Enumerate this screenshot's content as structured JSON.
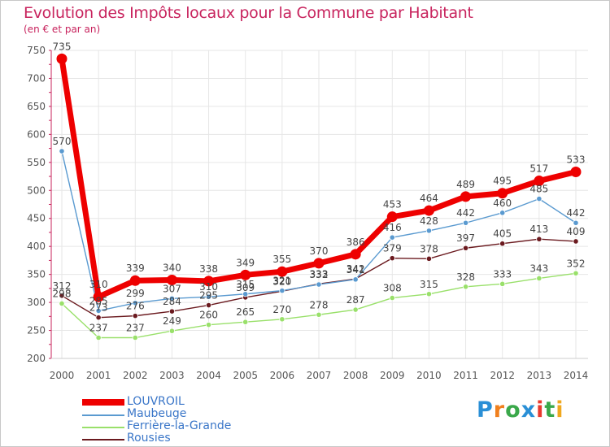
{
  "chart_data": {
    "type": "line",
    "title": "Evolution des Impôts locaux pour la Commune par Habitant",
    "subtitle": "(en € et par an)",
    "x": [
      "2000",
      "2001",
      "2002",
      "2003",
      "2004",
      "2005",
      "2006",
      "2007",
      "2008",
      "2009",
      "2010",
      "2011",
      "2012",
      "2013",
      "2014"
    ],
    "y_ticks": [
      200,
      250,
      300,
      350,
      400,
      450,
      500,
      550,
      600,
      650,
      700,
      750
    ],
    "ylim": [
      200,
      750
    ],
    "grid": true,
    "legend_position": "bottom-left",
    "series": [
      {
        "name": "Rousies",
        "color": "#6b1a1f",
        "values": [
          312,
          273,
          276,
          284,
          295,
          309,
          320,
          333,
          342,
          379,
          378,
          397,
          405,
          413,
          409
        ]
      },
      {
        "name": "Ferrière-la-Grande",
        "color": "#99e06a",
        "values": [
          298,
          237,
          237,
          249,
          260,
          265,
          270,
          278,
          287,
          308,
          315,
          328,
          333,
          343,
          352
        ]
      },
      {
        "name": "Maubeuge",
        "color": "#5a9ad0",
        "values": [
          570,
          285,
          299,
          307,
          310,
          315,
          321,
          332,
          341,
          416,
          428,
          442,
          460,
          485,
          442
        ]
      },
      {
        "name": "LOUVROIL",
        "color": "#ee0000",
        "values": [
          735,
          310,
          339,
          340,
          338,
          349,
          355,
          370,
          386,
          453,
          464,
          489,
          495,
          517,
          533
        ]
      }
    ]
  },
  "legend": [
    "LOUVROIL",
    "Maubeuge",
    "Ferrière-la-Grande",
    "Rousies"
  ],
  "logo": {
    "text": "Proxiti",
    "colors": [
      "#2a8fd6",
      "#f0801e",
      "#3aa84a",
      "#2a8fd6",
      "#e8392e",
      "#3aa84a",
      "#f0a81e"
    ]
  }
}
